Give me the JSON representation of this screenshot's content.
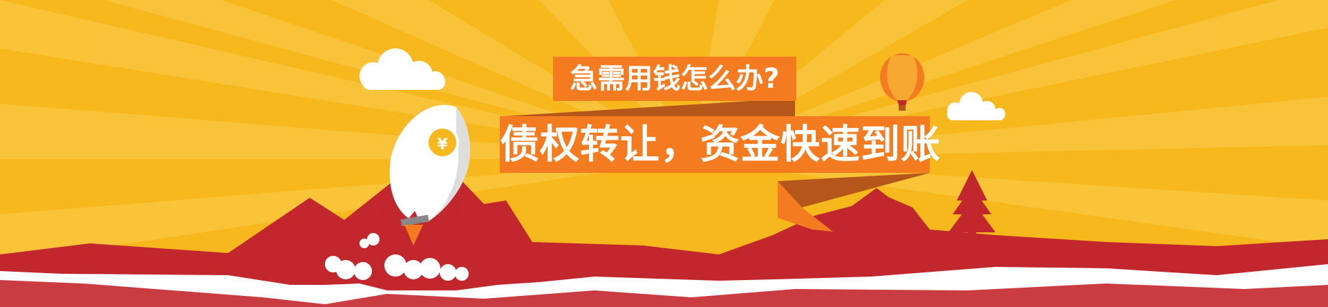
{
  "banner": {
    "headline_question": "急需用钱怎么办?",
    "headline_main": "债权转让，资金快速到账",
    "coin_symbol": "¥",
    "colors": {
      "sky": "#f7b81e",
      "ray": "#f9c63d",
      "mountain": "#c2272d",
      "ribbon_orange": "#f47b20",
      "ribbon_dark": "#b5561a",
      "ground": "#ffffff",
      "rocket_body": "#ffffff",
      "coin": "#f7b81e"
    },
    "icons": [
      "rocket-icon",
      "coin-icon",
      "hot-air-balloon-icon",
      "tree-icon",
      "cloud-icon"
    ]
  }
}
